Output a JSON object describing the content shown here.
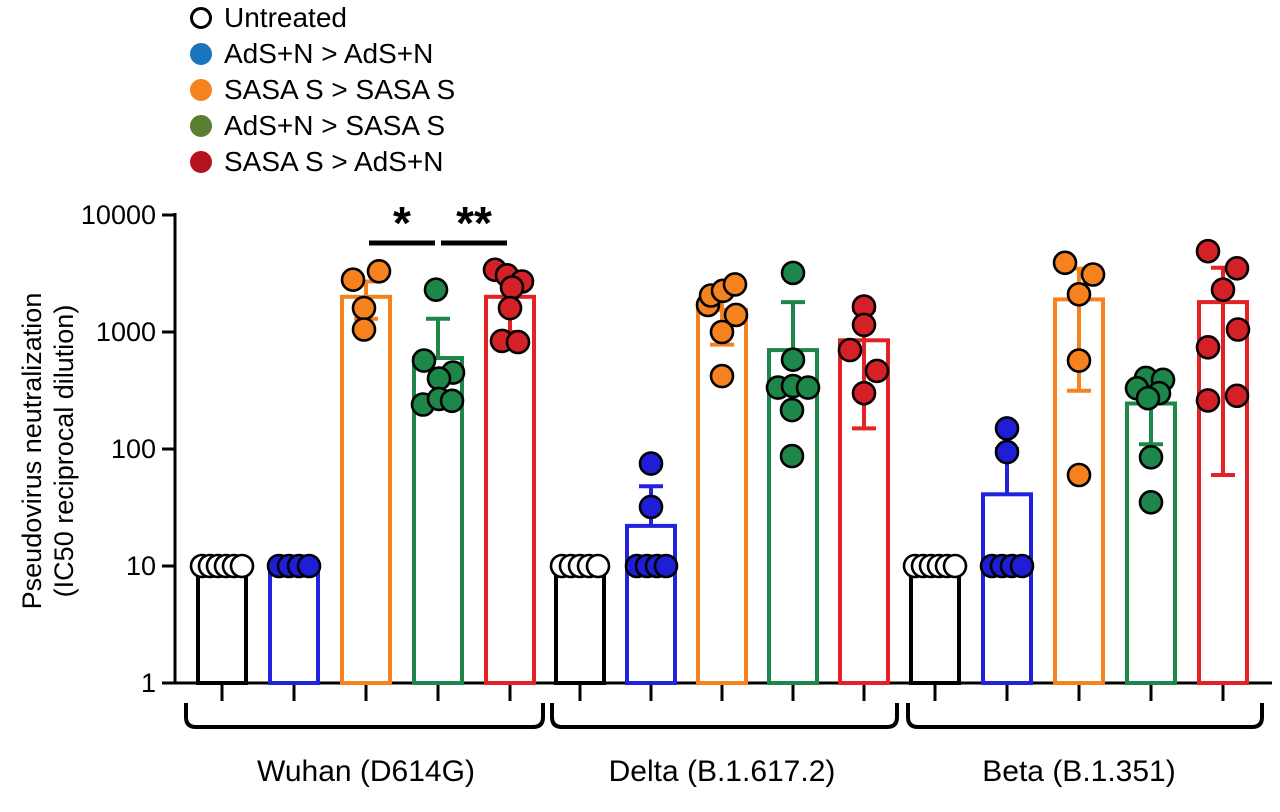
{
  "legend": {
    "items": [
      {
        "id": "untreated",
        "label": "Untreated",
        "marker_fill": "#ffffff",
        "marker_stroke": "#000000"
      },
      {
        "id": "adsn_adsn",
        "label": "AdS+N > AdS+N",
        "marker_fill": "#1b75bc",
        "marker_stroke": "#1b75bc"
      },
      {
        "id": "sasas_sasas",
        "label": "SASA S > SASA S",
        "marker_fill": "#f5821f",
        "marker_stroke": "#f5821f"
      },
      {
        "id": "adsn_sasas",
        "label": "AdS+N > SASA S",
        "marker_fill": "#5a7f33",
        "marker_stroke": "#5a7f33"
      },
      {
        "id": "sasas_adsn",
        "label": "SASA S > AdS+N",
        "marker_fill": "#b5121f",
        "marker_stroke": "#b5121f"
      }
    ]
  },
  "chart_data": {
    "type": "bar",
    "scale": "log10",
    "title": "",
    "ylabel_line1": "Pseudovirus neutralization",
    "ylabel_line2": "(IC50 reciprocal dilution)",
    "ylim": [
      1,
      10000
    ],
    "yticks": [
      1,
      10,
      100,
      1000,
      10000
    ],
    "legend_position": "top-left",
    "grid": false,
    "series_colors": {
      "untreated": {
        "bar": "#000000",
        "point": "#ffffff"
      },
      "adsn_adsn": {
        "bar": "#2222dd",
        "point": "#1e1ed6"
      },
      "sasas_sasas": {
        "bar": "#f5821f",
        "point": "#f5821f"
      },
      "adsn_sasas": {
        "bar": "#1d8649",
        "point": "#1d8649"
      },
      "sasas_adsn": {
        "bar": "#e32226",
        "point": "#d42027"
      }
    },
    "groups": [
      {
        "label": "Wuhan (D614G)",
        "bars": [
          {
            "series": "untreated",
            "mean": 10,
            "err_lo": null,
            "err_hi": null,
            "points": [
              [
                -20,
                10
              ],
              [
                -12,
                10
              ],
              [
                -4,
                10
              ],
              [
                4,
                10
              ],
              [
                12,
                10
              ],
              [
                20,
                10
              ]
            ]
          },
          {
            "series": "adsn_adsn",
            "mean": 10,
            "err_lo": null,
            "err_hi": null,
            "points": [
              [
                -15,
                10
              ],
              [
                -5,
                10
              ],
              [
                5,
                10
              ],
              [
                15,
                10
              ]
            ]
          },
          {
            "series": "sasas_sasas",
            "mean": 2000,
            "err_lo": 1300,
            "err_hi": 2700,
            "points": [
              [
                -13,
                2800
              ],
              [
                13,
                3300
              ],
              [
                -2,
                1600
              ],
              [
                -2,
                1050
              ]
            ]
          },
          {
            "series": "adsn_sasas",
            "mean": 600,
            "err_lo": null,
            "err_hi": 1300,
            "points": [
              [
                -2,
                2300
              ],
              [
                -14,
                570
              ],
              [
                15,
                450
              ],
              [
                1,
                400
              ],
              [
                -15,
                240
              ],
              [
                1,
                268
              ],
              [
                14,
                258
              ]
            ]
          },
          {
            "series": "sasas_adsn",
            "mean": 2000,
            "err_lo": 1000,
            "err_hi": 3000,
            "points": [
              [
                -15,
                3400
              ],
              [
                -3,
                3050
              ],
              [
                12,
                2700
              ],
              [
                2,
                2400
              ],
              [
                0,
                1600
              ],
              [
                -8,
                840
              ],
              [
                8,
                820
              ]
            ]
          }
        ]
      },
      {
        "label": "Delta (B.1.617.2)",
        "bars": [
          {
            "series": "untreated",
            "mean": 10,
            "err_lo": null,
            "err_hi": null,
            "points": [
              [
                -18,
                10
              ],
              [
                -9,
                10
              ],
              [
                0,
                10
              ],
              [
                9,
                10
              ],
              [
                18,
                10
              ]
            ]
          },
          {
            "series": "adsn_adsn",
            "mean": 22,
            "err_lo": null,
            "err_hi": 48,
            "points": [
              [
                0,
                75
              ],
              [
                0,
                32
              ],
              [
                -14,
                10
              ],
              [
                -4,
                10
              ],
              [
                6,
                10
              ],
              [
                15,
                10
              ]
            ]
          },
          {
            "series": "sasas_sasas",
            "mean": 1550,
            "err_lo": 780,
            "err_hi": 2300,
            "points": [
              [
                -14,
                1700
              ],
              [
                -11,
                2050
              ],
              [
                1,
                2250
              ],
              [
                13,
                2550
              ],
              [
                14,
                1400
              ],
              [
                0,
                1000
              ],
              [
                0,
                420
              ]
            ]
          },
          {
            "series": "adsn_sasas",
            "mean": 700,
            "err_lo": null,
            "err_hi": 1800,
            "points": [
              [
                0,
                3200
              ],
              [
                0,
                580
              ],
              [
                -15,
                335
              ],
              [
                0,
                345
              ],
              [
                15,
                335
              ],
              [
                -1,
                215
              ],
              [
                -1,
                87
              ]
            ]
          },
          {
            "series": "sasas_adsn",
            "mean": 850,
            "err_lo": 150,
            "err_hi": 1550,
            "points": [
              [
                0,
                1650
              ],
              [
                0,
                1150
              ],
              [
                -14,
                700
              ],
              [
                13,
                465
              ],
              [
                0,
                300
              ]
            ]
          }
        ]
      },
      {
        "label": "Beta (B.1.351)",
        "bars": [
          {
            "series": "untreated",
            "mean": 10,
            "err_lo": null,
            "err_hi": null,
            "points": [
              [
                -20,
                10
              ],
              [
                -12,
                10
              ],
              [
                -4,
                10
              ],
              [
                4,
                10
              ],
              [
                12,
                10
              ],
              [
                20,
                10
              ]
            ]
          },
          {
            "series": "adsn_adsn",
            "mean": 41,
            "err_lo": null,
            "err_hi": 100,
            "points": [
              [
                0,
                150
              ],
              [
                0,
                94
              ],
              [
                -15,
                10
              ],
              [
                -5,
                10
              ],
              [
                5,
                10
              ],
              [
                15,
                10
              ]
            ]
          },
          {
            "series": "sasas_sasas",
            "mean": 1900,
            "err_lo": 315,
            "err_hi": 3480,
            "points": [
              [
                -14,
                3900
              ],
              [
                14,
                3100
              ],
              [
                0,
                2100
              ],
              [
                0,
                570
              ],
              [
                0,
                60
              ]
            ]
          },
          {
            "series": "adsn_sasas",
            "mean": 245,
            "err_lo": 110,
            "err_hi": 380,
            "points": [
              [
                -5,
                405
              ],
              [
                12,
                390
              ],
              [
                -14,
                330
              ],
              [
                8,
                300
              ],
              [
                -3,
                272
              ],
              [
                0,
                85
              ],
              [
                0,
                35
              ]
            ]
          },
          {
            "series": "sasas_adsn",
            "mean": 1800,
            "err_lo": 60,
            "err_hi": 3540,
            "points": [
              [
                -15,
                4900
              ],
              [
                14,
                3500
              ],
              [
                0,
                2300
              ],
              [
                15,
                1050
              ],
              [
                -15,
                740
              ],
              [
                -15,
                260
              ],
              [
                14,
                285
              ]
            ]
          }
        ]
      }
    ],
    "significance": [
      {
        "group_index": 0,
        "bar_indexes": [
          2,
          3
        ],
        "label": "*"
      },
      {
        "group_index": 0,
        "bar_indexes": [
          3,
          4
        ],
        "label": "**"
      }
    ]
  }
}
